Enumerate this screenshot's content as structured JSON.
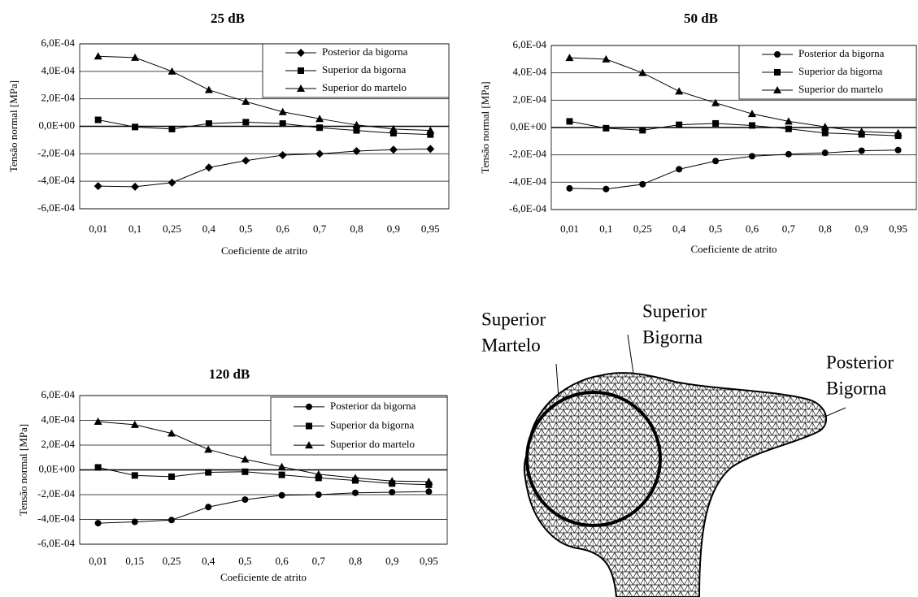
{
  "chart_data": [
    {
      "type": "line",
      "title": "25 dB",
      "x_label": "Coeficiente de atrito",
      "y_label": "Tensão normal [MPa]",
      "categories": [
        "0,01",
        "0,1",
        "0,25",
        "0,4",
        "0,5",
        "0,6",
        "0,7",
        "0,8",
        "0,9",
        "0,95"
      ],
      "series": [
        {
          "name": "Posterior da bigorna",
          "color": "#000000",
          "marker": "diamond",
          "values": [
            -0.000435,
            -0.00044,
            -0.00041,
            -0.0003,
            -0.00025,
            -0.00021,
            -0.0002,
            -0.00018,
            -0.00017,
            -0.000165
          ]
        },
        {
          "name": "Superior da bigorna",
          "color": "#000000",
          "marker": "square",
          "values": [
            4.7e-05,
            -5e-06,
            -2e-05,
            2e-05,
            3e-05,
            2e-05,
            -1e-05,
            -3e-05,
            -5e-05,
            -6e-05
          ]
        },
        {
          "name": "Superior do martelo",
          "color": "#000000",
          "marker": "triangle",
          "values": [
            0.00051,
            0.0005,
            0.0004,
            0.000265,
            0.00018,
            0.000105,
            5.5e-05,
            1e-05,
            -2e-05,
            -3e-05
          ]
        }
      ],
      "ylim": [
        -0.0006,
        0.0006
      ],
      "yticks": [
        {
          "value": -0.0006,
          "label": "-6,0E-04"
        },
        {
          "value": -0.0004,
          "label": "-4,0E-04"
        },
        {
          "value": -0.0002,
          "label": "-2,0E-04"
        },
        {
          "value": 0,
          "label": "0,0E+00"
        },
        {
          "value": 0.0002,
          "label": "2,0E-04"
        },
        {
          "value": 0.0004,
          "label": "4,0E-04"
        },
        {
          "value": 0.0006,
          "label": "6,0E-04"
        }
      ],
      "grid": true,
      "legend": "top-right"
    },
    {
      "type": "line",
      "title": "50 dB",
      "x_label": "Coeficiente de atrito",
      "y_label": "Tensão normal [MPa]",
      "categories": [
        "0,01",
        "0,1",
        "0,25",
        "0,4",
        "0,5",
        "0,6",
        "0,7",
        "0,8",
        "0,9",
        "0,95"
      ],
      "series": [
        {
          "name": "Posterior da bigorna",
          "color": "#000000",
          "marker": "circle",
          "values": [
            -0.000445,
            -0.00045,
            -0.000415,
            -0.000305,
            -0.000245,
            -0.00021,
            -0.000195,
            -0.000185,
            -0.00017,
            -0.000165
          ]
        },
        {
          "name": "Superior da bigorna",
          "color": "#000000",
          "marker": "square",
          "values": [
            4.5e-05,
            -5e-06,
            -2e-05,
            2e-05,
            3e-05,
            1.5e-05,
            -1e-05,
            -4e-05,
            -5e-05,
            -6e-05
          ]
        },
        {
          "name": "Superior do martelo",
          "color": "#000000",
          "marker": "triangle",
          "values": [
            0.00051,
            0.0005,
            0.0004,
            0.000265,
            0.00018,
            0.0001,
            4.5e-05,
            5e-06,
            -3e-05,
            -4e-05
          ]
        }
      ],
      "ylim": [
        -0.0006,
        0.0006
      ],
      "yticks": [
        {
          "value": -0.0006,
          "label": "-6,0E-04"
        },
        {
          "value": -0.0004,
          "label": "-4,0E-04"
        },
        {
          "value": -0.0002,
          "label": "-2,0E-04"
        },
        {
          "value": 0,
          "label": "0,0E+00"
        },
        {
          "value": 0.0002,
          "label": "2,0E-04"
        },
        {
          "value": 0.0004,
          "label": "4,0E-04"
        },
        {
          "value": 0.0006,
          "label": "6,0E-04"
        }
      ],
      "grid": true,
      "legend": "top-right"
    },
    {
      "type": "line",
      "title": "120 dB",
      "x_label": "Coeficiente de atrito",
      "y_label": "Tensão normal [MPa]",
      "categories": [
        "0,01",
        "0,15",
        "0,25",
        "0,4",
        "0,5",
        "0,6",
        "0,7",
        "0,8",
        "0,9",
        "0,95"
      ],
      "series": [
        {
          "name": "Posterior da bigorna",
          "color": "#000000",
          "marker": "circle",
          "values": [
            -0.00043,
            -0.00042,
            -0.000405,
            -0.0003,
            -0.00024,
            -0.000205,
            -0.0002,
            -0.000185,
            -0.00018,
            -0.000175
          ]
        },
        {
          "name": "Superior da bigorna",
          "color": "#000000",
          "marker": "square",
          "values": [
            2e-05,
            -4.5e-05,
            -5.5e-05,
            -2e-05,
            -1.5e-05,
            -4e-05,
            -6.5e-05,
            -8.5e-05,
            -0.00011,
            -0.00012
          ]
        },
        {
          "name": "Superior do martelo",
          "color": "#000000",
          "marker": "triangle",
          "values": [
            0.00039,
            0.000365,
            0.000295,
            0.000165,
            8.5e-05,
            2.5e-05,
            -3.5e-05,
            -6.5e-05,
            -9e-05,
            -9.5e-05
          ]
        }
      ],
      "ylim": [
        -0.0006,
        0.0006
      ],
      "yticks": [
        {
          "value": -0.0006,
          "label": "-6,0E-04"
        },
        {
          "value": -0.0004,
          "label": "-4,0E-04"
        },
        {
          "value": -0.0002,
          "label": "-2,0E-04"
        },
        {
          "value": 0,
          "label": "0,0E+00"
        },
        {
          "value": 0.0002,
          "label": "2,0E-04"
        },
        {
          "value": 0.0004,
          "label": "4,0E-04"
        },
        {
          "value": 0.0006,
          "label": "6,0E-04"
        }
      ],
      "grid": true,
      "legend": "top-right"
    }
  ],
  "mesh_figure": {
    "labels": [
      {
        "lines": [
          "Superior",
          "Martelo"
        ]
      },
      {
        "lines": [
          "Superior",
          "Bigorna"
        ]
      },
      {
        "lines": [
          "Posterior",
          "Bigorna"
        ]
      }
    ]
  }
}
